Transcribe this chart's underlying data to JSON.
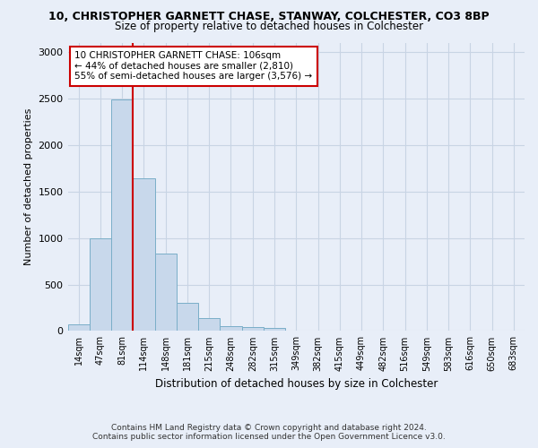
{
  "title": "10, CHRISTOPHER GARNETT CHASE, STANWAY, COLCHESTER, CO3 8BP",
  "subtitle": "Size of property relative to detached houses in Colchester",
  "xlabel": "Distribution of detached houses by size in Colchester",
  "ylabel": "Number of detached properties",
  "footer_line1": "Contains HM Land Registry data © Crown copyright and database right 2024.",
  "footer_line2": "Contains public sector information licensed under the Open Government Licence v3.0.",
  "bin_labels": [
    "14sqm",
    "47sqm",
    "81sqm",
    "114sqm",
    "148sqm",
    "181sqm",
    "215sqm",
    "248sqm",
    "282sqm",
    "315sqm",
    "349sqm",
    "382sqm",
    "415sqm",
    "449sqm",
    "482sqm",
    "516sqm",
    "549sqm",
    "583sqm",
    "616sqm",
    "650sqm",
    "683sqm"
  ],
  "bar_values": [
    75,
    1000,
    2490,
    1640,
    830,
    300,
    140,
    55,
    40,
    30,
    0,
    0,
    0,
    0,
    0,
    0,
    0,
    0,
    0,
    0,
    0
  ],
  "bar_color": "#c8d8eb",
  "bar_edge_color": "#7aaec8",
  "grid_color": "#c8d4e4",
  "background_color": "#e8eef8",
  "vline_color": "#cc0000",
  "vline_position": 2.5,
  "annotation_text": "10 CHRISTOPHER GARNETT CHASE: 106sqm\n← 44% of detached houses are smaller (2,810)\n55% of semi-detached houses are larger (3,576) →",
  "annotation_box_color": "#ffffff",
  "annotation_border_color": "#cc0000",
  "ylim": [
    0,
    3100
  ],
  "yticks": [
    0,
    500,
    1000,
    1500,
    2000,
    2500,
    3000
  ]
}
